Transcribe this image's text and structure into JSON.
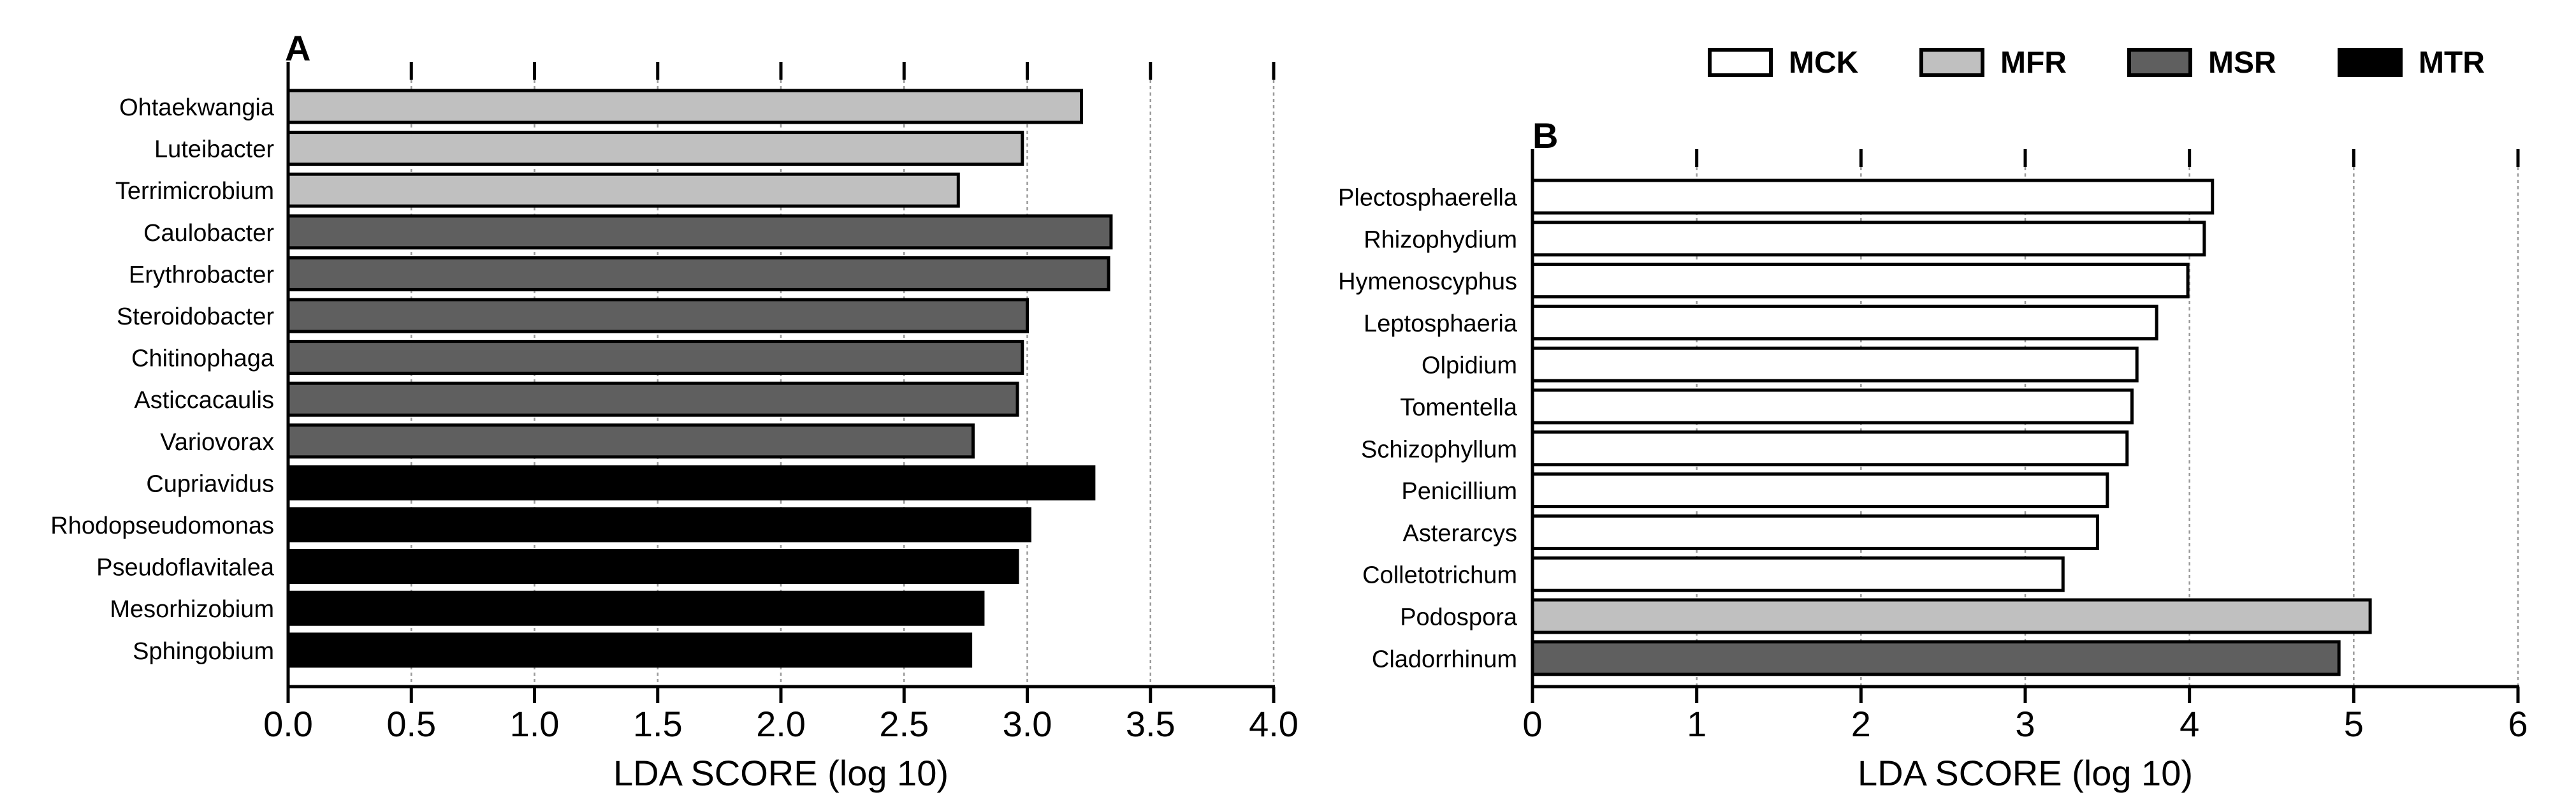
{
  "colors": {
    "MCK": "#ffffff",
    "MFR": "#c0c0c0",
    "MSR": "#5f5f5f",
    "MTR": "#000000",
    "outline": "#000000",
    "grid": "#9a9a9a"
  },
  "legend": [
    {
      "group": "MCK",
      "label": "MCK"
    },
    {
      "group": "MFR",
      "label": "MFR"
    },
    {
      "group": "MSR",
      "label": "MSR"
    },
    {
      "group": "MTR",
      "label": "MTR"
    }
  ],
  "chart_data": [
    {
      "type": "bar",
      "orientation": "horizontal",
      "panel": "A",
      "xlabel": "LDA SCORE (log 10)",
      "xlim": [
        0,
        4.0
      ],
      "xticks": [
        "0.0",
        "0.5",
        "1.0",
        "1.5",
        "2.0",
        "2.5",
        "3.0",
        "3.5",
        "4.0"
      ],
      "grid": "vertical dotted at 3.0, 3.5, 4.0",
      "categories": [
        "Ohtaekwangia",
        "Luteibacter",
        "Terrimicrobium",
        "Caulobacter",
        "Erythrobacter",
        "Steroidobacter",
        "Chitinophaga",
        "Asticcacaulis",
        "Variovorax",
        "Cupriavidus",
        "Rhodopseudomonas",
        "Pseudoflavitalea",
        "Mesorhizobium",
        "Sphingobium"
      ],
      "values": [
        3.22,
        2.98,
        2.72,
        3.34,
        3.33,
        3.0,
        2.98,
        2.96,
        2.78,
        3.27,
        3.01,
        2.96,
        2.82,
        2.77
      ],
      "groups": [
        "MFR",
        "MFR",
        "MFR",
        "MSR",
        "MSR",
        "MSR",
        "MSR",
        "MSR",
        "MSR",
        "MTR",
        "MTR",
        "MTR",
        "MTR",
        "MTR"
      ]
    },
    {
      "type": "bar",
      "orientation": "horizontal",
      "panel": "B",
      "xlabel": "LDA SCORE (log 10)",
      "xlim": [
        0,
        6
      ],
      "xticks": [
        "0",
        "1",
        "2",
        "3",
        "4",
        "5",
        "6"
      ],
      "grid": "vertical dotted at 1, 2, 3, 4, 5, 6",
      "categories": [
        "Plectosphaerella",
        "Rhizophydium",
        "Hymenoscyphus",
        "Leptosphaeria",
        "Olpidium",
        "Tomentella",
        "Schizophyllum",
        "Penicillium",
        "Asterarcys",
        "Colletotrichum",
        "Podospora",
        "Cladorrhinum"
      ],
      "values": [
        4.14,
        4.09,
        3.99,
        3.8,
        3.68,
        3.65,
        3.62,
        3.5,
        3.44,
        3.23,
        5.1,
        4.91
      ],
      "groups": [
        "MCK",
        "MCK",
        "MCK",
        "MCK",
        "MCK",
        "MCK",
        "MCK",
        "MCK",
        "MCK",
        "MCK",
        "MFR",
        "MSR"
      ]
    }
  ]
}
